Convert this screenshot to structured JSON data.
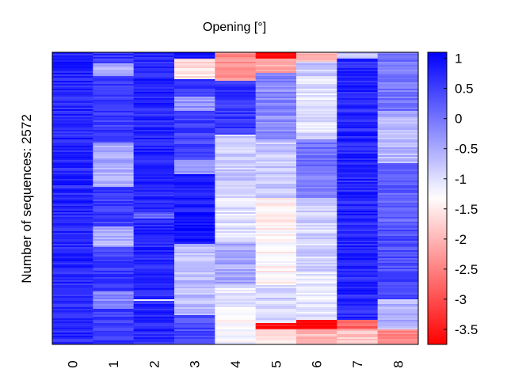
{
  "chart_data": {
    "type": "heatmap",
    "title": "Opening [°]",
    "xlabel": "",
    "ylabel": "Number of sequences: 2572",
    "x_categories": [
      "0",
      "1",
      "2",
      "3",
      "4",
      "5",
      "6",
      "7",
      "8"
    ],
    "row_count": 2572,
    "colorbar": {
      "range": [
        -3.75,
        1.1
      ],
      "ticks": [
        "1",
        "0.5",
        "0",
        "-0.5",
        "-1",
        "-1.5",
        "-2",
        "-2.5",
        "-3",
        "-3.5"
      ],
      "tick_values": [
        1,
        0.5,
        0,
        -0.5,
        -1,
        -1.5,
        -2,
        -2.5,
        -3,
        -3.5
      ],
      "colors": {
        "high": "#0000ff",
        "mid": "#ffffff",
        "low": "#ff0000"
      },
      "midpoint": -1.3
    },
    "columns": [
      {
        "category": "0",
        "segments": [
          {
            "from": 0.0,
            "to": 1.0,
            "value": 0.75
          }
        ]
      },
      {
        "category": "1",
        "segments": [
          {
            "from": 0.0,
            "to": 0.04,
            "value": 0.6
          },
          {
            "from": 0.04,
            "to": 0.08,
            "value": -0.6
          },
          {
            "from": 0.08,
            "to": 0.31,
            "value": 0.55
          },
          {
            "from": 0.31,
            "to": 0.46,
            "value": -0.5
          },
          {
            "from": 0.46,
            "to": 0.6,
            "value": 0.55
          },
          {
            "from": 0.6,
            "to": 0.67,
            "value": -0.6
          },
          {
            "from": 0.67,
            "to": 0.82,
            "value": 0.55
          },
          {
            "from": 0.82,
            "to": 0.88,
            "value": -0.2
          },
          {
            "from": 0.88,
            "to": 1.0,
            "value": 0.55
          }
        ]
      },
      {
        "category": "2",
        "segments": [
          {
            "from": 0.0,
            "to": 0.09,
            "value": 0.7
          },
          {
            "from": 0.09,
            "to": 0.095,
            "value": -1.3
          },
          {
            "from": 0.095,
            "to": 0.55,
            "value": 0.75
          },
          {
            "from": 0.55,
            "to": 0.57,
            "value": 0.1
          },
          {
            "from": 0.57,
            "to": 0.85,
            "value": 0.75
          },
          {
            "from": 0.85,
            "to": 0.855,
            "value": -1.3
          },
          {
            "from": 0.855,
            "to": 1.0,
            "value": 0.75
          }
        ]
      },
      {
        "category": "3",
        "segments": [
          {
            "from": 0.0,
            "to": 0.02,
            "value": 0.8
          },
          {
            "from": 0.02,
            "to": 0.09,
            "value": -1.6
          },
          {
            "from": 0.09,
            "to": 0.15,
            "value": 0.6
          },
          {
            "from": 0.15,
            "to": 0.2,
            "value": -0.3
          },
          {
            "from": 0.2,
            "to": 0.37,
            "value": 0.5
          },
          {
            "from": 0.37,
            "to": 0.42,
            "value": -0.4
          },
          {
            "from": 0.42,
            "to": 0.55,
            "value": 0.85
          },
          {
            "from": 0.55,
            "to": 0.66,
            "value": 1.0
          },
          {
            "from": 0.66,
            "to": 0.9,
            "value": -0.7
          },
          {
            "from": 0.9,
            "to": 1.0,
            "value": 0.4
          }
        ]
      },
      {
        "category": "4",
        "segments": [
          {
            "from": 0.0,
            "to": 0.1,
            "value": -2.4
          },
          {
            "from": 0.1,
            "to": 0.28,
            "value": 0.6
          },
          {
            "from": 0.28,
            "to": 0.45,
            "value": -0.8
          },
          {
            "from": 0.45,
            "to": 0.65,
            "value": -1.0
          },
          {
            "from": 0.65,
            "to": 0.8,
            "value": -0.5
          },
          {
            "from": 0.8,
            "to": 0.9,
            "value": -1.1
          },
          {
            "from": 0.9,
            "to": 1.0,
            "value": -1.3
          }
        ]
      },
      {
        "category": "5",
        "segments": [
          {
            "from": 0.0,
            "to": 0.02,
            "value": -3.7
          },
          {
            "from": 0.02,
            "to": 0.07,
            "value": -2.2
          },
          {
            "from": 0.07,
            "to": 0.3,
            "value": -0.2
          },
          {
            "from": 0.3,
            "to": 0.5,
            "value": -0.8
          },
          {
            "from": 0.5,
            "to": 0.8,
            "value": -1.4
          },
          {
            "from": 0.8,
            "to": 0.93,
            "value": -0.9
          },
          {
            "from": 0.93,
            "to": 0.95,
            "value": -3.6
          },
          {
            "from": 0.95,
            "to": 1.0,
            "value": -1.6
          }
        ]
      },
      {
        "category": "6",
        "segments": [
          {
            "from": 0.0,
            "to": 0.03,
            "value": -2.0
          },
          {
            "from": 0.03,
            "to": 0.08,
            "value": -0.8
          },
          {
            "from": 0.08,
            "to": 0.3,
            "value": -1.0
          },
          {
            "from": 0.3,
            "to": 0.5,
            "value": 0.0
          },
          {
            "from": 0.5,
            "to": 0.75,
            "value": -0.9
          },
          {
            "from": 0.75,
            "to": 0.92,
            "value": -1.1
          },
          {
            "from": 0.92,
            "to": 0.95,
            "value": -3.7
          },
          {
            "from": 0.95,
            "to": 1.0,
            "value": -2.0
          }
        ]
      },
      {
        "category": "7",
        "segments": [
          {
            "from": 0.0,
            "to": 0.02,
            "value": -0.8
          },
          {
            "from": 0.02,
            "to": 0.92,
            "value": 0.75
          },
          {
            "from": 0.92,
            "to": 0.95,
            "value": -2.8
          },
          {
            "from": 0.95,
            "to": 1.0,
            "value": -1.8
          }
        ]
      },
      {
        "category": "8",
        "segments": [
          {
            "from": 0.0,
            "to": 0.2,
            "value": 0.0
          },
          {
            "from": 0.2,
            "to": 0.38,
            "value": -0.6
          },
          {
            "from": 0.38,
            "to": 0.6,
            "value": 0.2
          },
          {
            "from": 0.6,
            "to": 0.85,
            "value": 0.4
          },
          {
            "from": 0.85,
            "to": 0.95,
            "value": -0.6
          },
          {
            "from": 0.95,
            "to": 1.0,
            "value": -2.4
          }
        ]
      }
    ]
  }
}
